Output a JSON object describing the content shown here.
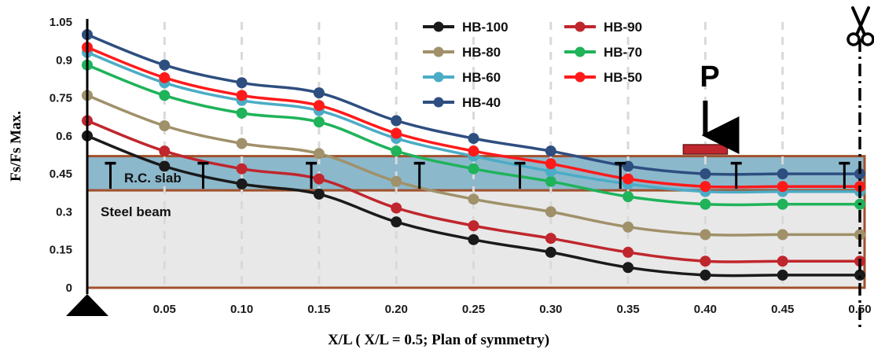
{
  "chart_data": {
    "type": "line",
    "xlabel": "X/L ( X/L = 0.5; Plan of symmetry)",
    "ylabel": "Fs/Fs Max.",
    "xlim": [
      0,
      0.5
    ],
    "ylim": [
      0,
      1.05
    ],
    "x": [
      0,
      0.05,
      0.1,
      0.15,
      0.2,
      0.25,
      0.3,
      0.35,
      0.4,
      0.45,
      0.5
    ],
    "x_tick_labels": [
      "0.05",
      "0.10",
      "0.15",
      "0.20",
      "0.25",
      "0.30",
      "0.35",
      "0.40",
      "0.45",
      "0.50"
    ],
    "y_ticks": [
      0,
      0.15,
      0.3,
      0.45,
      0.6,
      0.75,
      0.9,
      1.05
    ],
    "y_tick_labels": [
      "0",
      "0.15",
      "0.3",
      "0.45",
      "0.6",
      "0.75",
      "0.9",
      "1.05"
    ],
    "grid": "vertical dashed",
    "legend_position": "top-center, two columns",
    "series": [
      {
        "name": "HB-100",
        "color": "#1a1a1a",
        "values": [
          0.6,
          0.48,
          0.41,
          0.37,
          0.26,
          0.19,
          0.14,
          0.08,
          0.05,
          0.05,
          0.05
        ]
      },
      {
        "name": "HB-90",
        "color": "#c0262d",
        "values": [
          0.66,
          0.54,
          0.47,
          0.43,
          0.315,
          0.245,
          0.195,
          0.14,
          0.105,
          0.105,
          0.105
        ]
      },
      {
        "name": "HB-80",
        "color": "#a0916a",
        "values": [
          0.76,
          0.64,
          0.57,
          0.53,
          0.42,
          0.35,
          0.3,
          0.24,
          0.21,
          0.21,
          0.21
        ]
      },
      {
        "name": "HB-70",
        "color": "#1fb35a",
        "values": [
          0.88,
          0.76,
          0.69,
          0.655,
          0.54,
          0.47,
          0.42,
          0.36,
          0.33,
          0.33,
          0.33
        ]
      },
      {
        "name": "HB-60",
        "color": "#4bacc6",
        "values": [
          0.93,
          0.81,
          0.74,
          0.7,
          0.59,
          0.52,
          0.46,
          0.41,
          0.38,
          0.38,
          0.38
        ]
      },
      {
        "name": "HB-50",
        "color": "#ff1a1a",
        "values": [
          0.95,
          0.83,
          0.76,
          0.72,
          0.61,
          0.54,
          0.49,
          0.43,
          0.4,
          0.4,
          0.4
        ]
      },
      {
        "name": "HB-40",
        "color": "#2e4e80",
        "values": [
          1.0,
          0.88,
          0.81,
          0.77,
          0.66,
          0.59,
          0.54,
          0.48,
          0.45,
          0.45,
          0.45
        ]
      }
    ],
    "annotations": {
      "slab_label": "R.C. slab",
      "beam_label": "Steel beam",
      "load_label": "P",
      "load_position": 0.4,
      "connector_positions": [
        0.015,
        0.075,
        0.145,
        0.215,
        0.28,
        0.345,
        0.42,
        0.49
      ],
      "slab_range": [
        0.385,
        0.52
      ],
      "beam_range": [
        0,
        0.385
      ]
    },
    "colors": {
      "slab_fill": "#8cb8cc",
      "beam_fill": "#e8e8e8",
      "region_border": "#a0522d",
      "load_plate": "#c0262d"
    }
  }
}
